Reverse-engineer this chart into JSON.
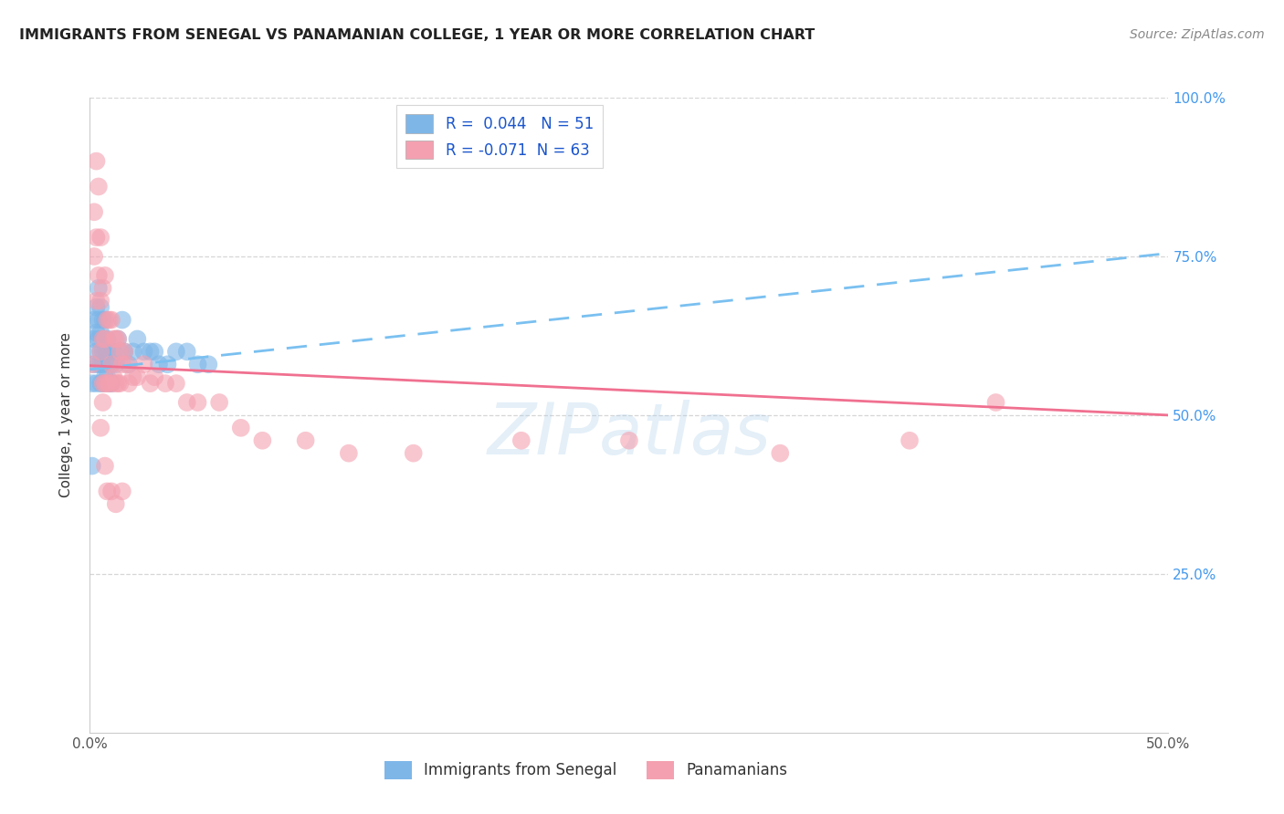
{
  "title": "IMMIGRANTS FROM SENEGAL VS PANAMANIAN COLLEGE, 1 YEAR OR MORE CORRELATION CHART",
  "source": "Source: ZipAtlas.com",
  "ylabel": "College, 1 year or more",
  "xlim": [
    0.0,
    0.5
  ],
  "ylim": [
    0.0,
    1.0
  ],
  "color_blue": "#7EB6E8",
  "color_pink": "#F4A0B0",
  "line_color_blue": "#7AC0F0",
  "line_color_pink": "#F07090",
  "watermark": "ZIPatlas",
  "legend_label1": "R =  0.044   N = 51",
  "legend_label2": "R = -0.071  N = 63",
  "senegal_x": [
    0.001,
    0.001,
    0.002,
    0.002,
    0.002,
    0.003,
    0.003,
    0.003,
    0.003,
    0.004,
    0.004,
    0.004,
    0.004,
    0.005,
    0.005,
    0.005,
    0.005,
    0.005,
    0.006,
    0.006,
    0.006,
    0.006,
    0.006,
    0.007,
    0.007,
    0.007,
    0.008,
    0.008,
    0.008,
    0.009,
    0.009,
    0.01,
    0.01,
    0.011,
    0.012,
    0.013,
    0.014,
    0.015,
    0.016,
    0.018,
    0.02,
    0.022,
    0.025,
    0.028,
    0.03,
    0.032,
    0.036,
    0.04,
    0.045,
    0.05,
    0.055
  ],
  "senegal_y": [
    0.55,
    0.42,
    0.58,
    0.62,
    0.65,
    0.55,
    0.6,
    0.63,
    0.67,
    0.58,
    0.62,
    0.65,
    0.7,
    0.55,
    0.58,
    0.6,
    0.63,
    0.67,
    0.55,
    0.58,
    0.6,
    0.62,
    0.65,
    0.56,
    0.6,
    0.65,
    0.56,
    0.6,
    0.62,
    0.55,
    0.58,
    0.55,
    0.58,
    0.6,
    0.58,
    0.62,
    0.6,
    0.65,
    0.6,
    0.58,
    0.6,
    0.62,
    0.6,
    0.6,
    0.6,
    0.58,
    0.58,
    0.6,
    0.6,
    0.58,
    0.58
  ],
  "panama_x": [
    0.001,
    0.002,
    0.002,
    0.003,
    0.003,
    0.003,
    0.004,
    0.004,
    0.005,
    0.005,
    0.005,
    0.006,
    0.006,
    0.006,
    0.007,
    0.007,
    0.007,
    0.008,
    0.008,
    0.009,
    0.009,
    0.01,
    0.01,
    0.01,
    0.011,
    0.011,
    0.012,
    0.012,
    0.013,
    0.013,
    0.014,
    0.014,
    0.015,
    0.016,
    0.017,
    0.018,
    0.02,
    0.022,
    0.025,
    0.028,
    0.03,
    0.035,
    0.04,
    0.045,
    0.05,
    0.06,
    0.07,
    0.08,
    0.1,
    0.12,
    0.15,
    0.2,
    0.25,
    0.32,
    0.38,
    0.42,
    0.005,
    0.006,
    0.007,
    0.008,
    0.01,
    0.012,
    0.015
  ],
  "panama_y": [
    0.58,
    0.75,
    0.82,
    0.68,
    0.78,
    0.9,
    0.72,
    0.86,
    0.6,
    0.68,
    0.78,
    0.55,
    0.62,
    0.7,
    0.55,
    0.62,
    0.72,
    0.55,
    0.65,
    0.55,
    0.65,
    0.55,
    0.58,
    0.65,
    0.56,
    0.62,
    0.55,
    0.62,
    0.55,
    0.62,
    0.55,
    0.6,
    0.58,
    0.6,
    0.58,
    0.55,
    0.56,
    0.56,
    0.58,
    0.55,
    0.56,
    0.55,
    0.55,
    0.52,
    0.52,
    0.52,
    0.48,
    0.46,
    0.46,
    0.44,
    0.44,
    0.46,
    0.46,
    0.44,
    0.46,
    0.52,
    0.48,
    0.52,
    0.42,
    0.38,
    0.38,
    0.36,
    0.38
  ]
}
